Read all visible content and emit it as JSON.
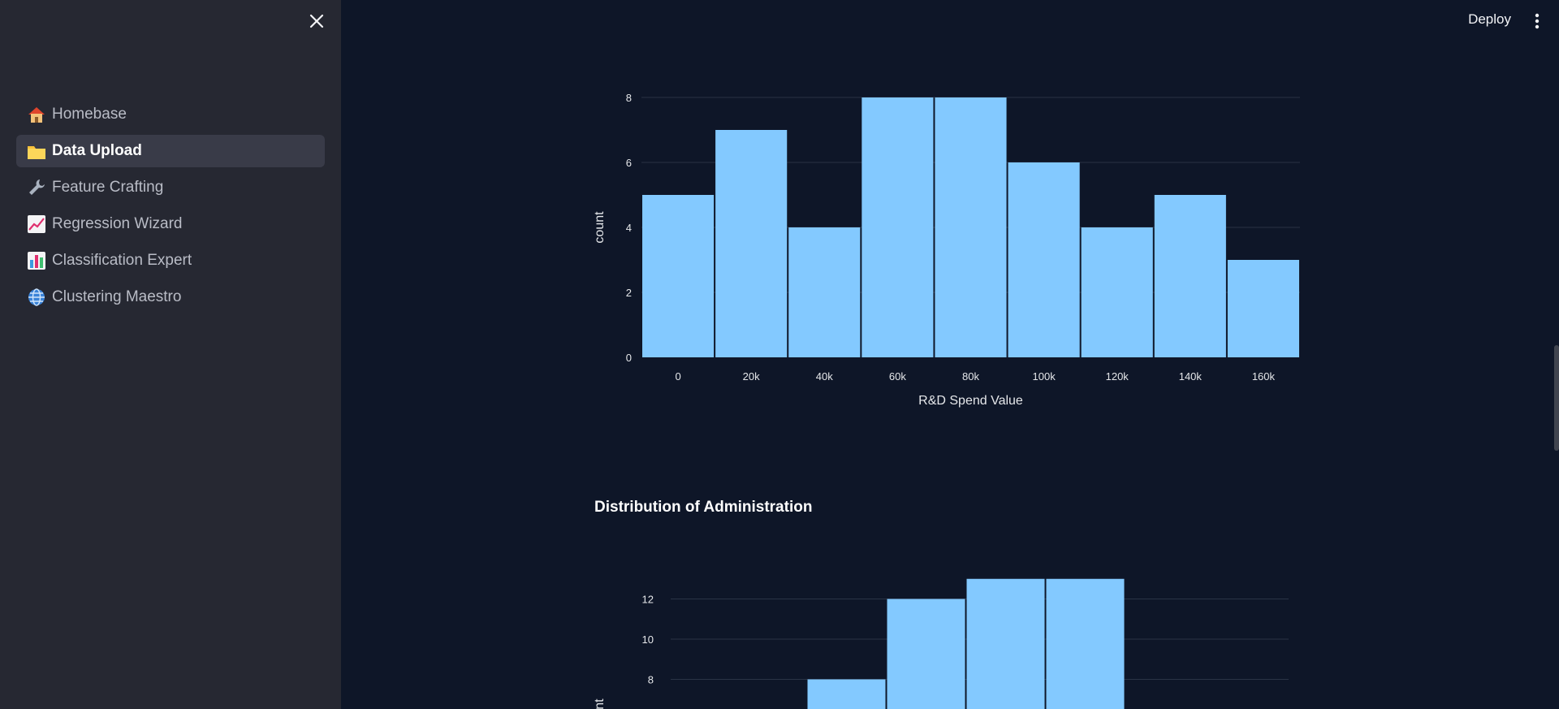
{
  "sidebar": {
    "items": [
      {
        "label": "Homebase",
        "icon": "house-icon",
        "active": false
      },
      {
        "label": "Data Upload",
        "icon": "folder-icon",
        "active": true
      },
      {
        "label": "Feature Crafting",
        "icon": "wrench-icon",
        "active": false
      },
      {
        "label": "Regression Wizard",
        "icon": "chart-increasing-icon",
        "active": false
      },
      {
        "label": "Classification Expert",
        "icon": "bar-chart-icon",
        "active": false
      },
      {
        "label": "Clustering Maestro",
        "icon": "globe-icon",
        "active": false
      }
    ]
  },
  "header": {
    "deploy_label": "Deploy"
  },
  "section2": {
    "title": "Distribution of Administration"
  },
  "colors": {
    "bar": "#83c9ff",
    "background": "#0e1628",
    "sidebar": "#262832",
    "grid": "#2a3345"
  },
  "chart_data": [
    {
      "type": "bar",
      "title": "",
      "xlabel": "R&D Spend Value",
      "ylabel": "count",
      "categories": [
        "0",
        "20k",
        "40k",
        "60k",
        "80k",
        "100k",
        "120k",
        "140k",
        "160k"
      ],
      "values": [
        5,
        7,
        4,
        8,
        8,
        6,
        4,
        5,
        3
      ],
      "ylim": [
        0,
        8
      ],
      "yticks": [
        0,
        2,
        4,
        6,
        8
      ],
      "grid": true
    },
    {
      "type": "bar",
      "title": "Distribution of Administration",
      "ylabel": "count",
      "values": [
        8,
        12,
        13,
        13
      ],
      "yticks": [
        8,
        10,
        12
      ],
      "grid": true
    }
  ]
}
